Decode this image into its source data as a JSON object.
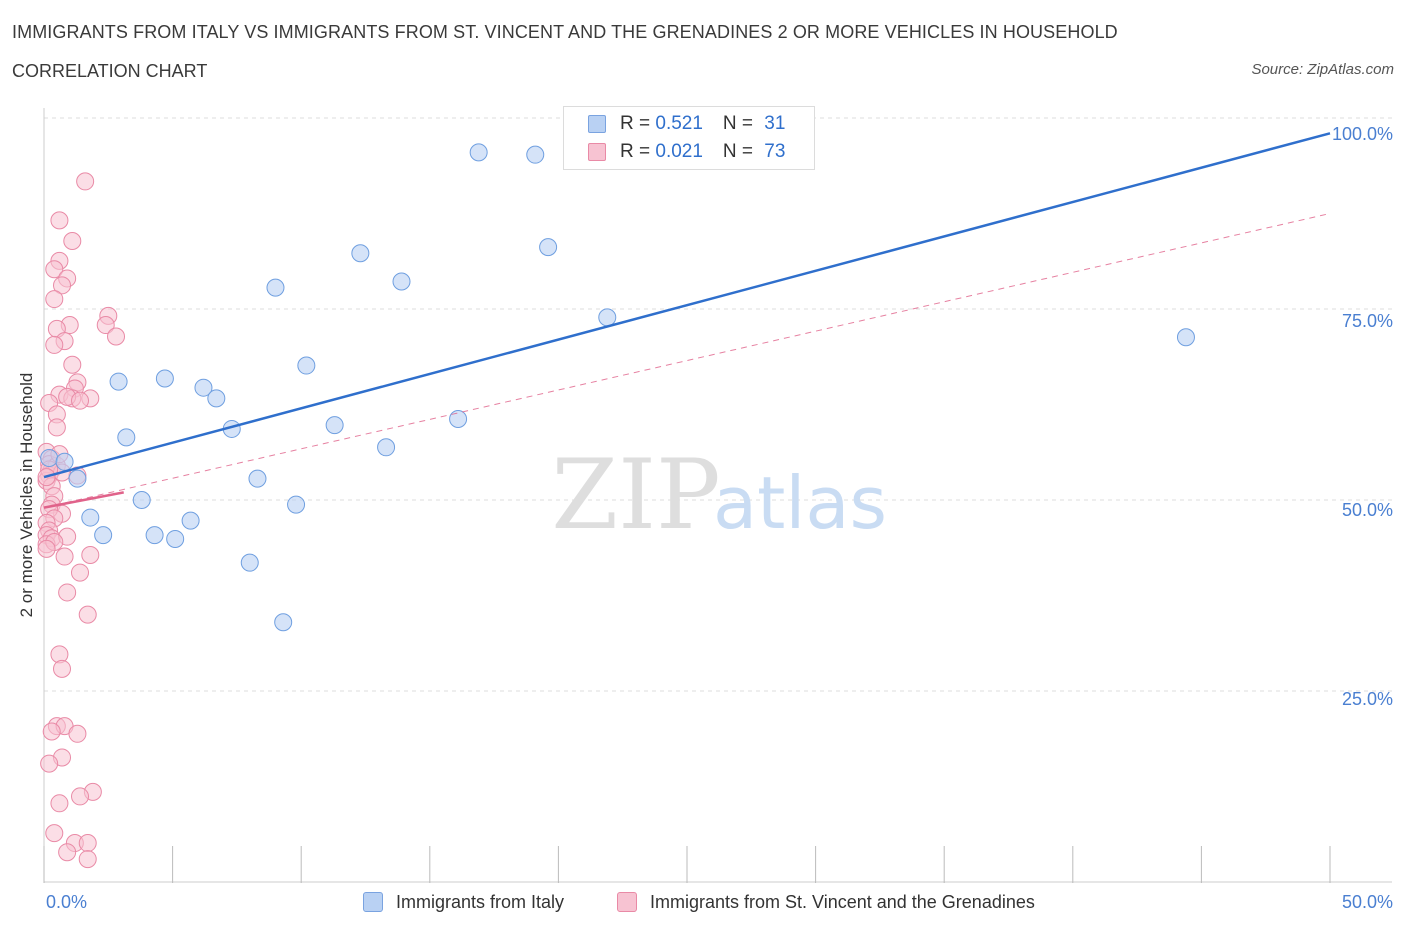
{
  "header": {
    "title": "IMMIGRANTS FROM ITALY VS IMMIGRANTS FROM ST. VINCENT AND THE GRENADINES 2 OR MORE VEHICLES IN HOUSEHOLD",
    "subtitle": "CORRELATION CHART",
    "source": "Source: ZipAtlas.com"
  },
  "watermark": {
    "zip": "ZIP",
    "atlas": "atlas"
  },
  "legend": {
    "rows": [
      {
        "r_label": "R = ",
        "r_value": "0.521",
        "n_label": "N = ",
        "n_value": "31",
        "color": "#a8c6f0"
      },
      {
        "r_label": "R = ",
        "r_value": "0.021",
        "n_label": "N = ",
        "n_value": "73",
        "color": "#f4b6c8"
      }
    ]
  },
  "colors": {
    "italy_fill": "#b9d1f3",
    "italy_stroke": "#6f9fe0",
    "italy_line": "#2f6fcc",
    "svg_fill": "#f7c3d2",
    "svg_stroke": "#e98aa6",
    "svg_line": "#e0628a",
    "tick_text": "#4a7fd1",
    "grid": "#dcdcdc"
  },
  "chart_data": {
    "type": "scatter",
    "title": "IMMIGRANTS FROM ITALY VS IMMIGRANTS FROM ST. VINCENT AND THE GRENADINES 2 OR MORE VEHICLES IN HOUSEHOLD",
    "xlabel": "",
    "ylabel": "2 or more Vehicles in Household",
    "xlim": [
      0,
      50
    ],
    "ylim": [
      0,
      100
    ],
    "x_tick_labels": [
      {
        "value": 0,
        "label": "0.0%"
      },
      {
        "value": 50,
        "label": "50.0%"
      }
    ],
    "y_tick_labels": [
      {
        "value": 100,
        "label": "100.0%"
      },
      {
        "value": 75,
        "label": "75.0%"
      },
      {
        "value": 50,
        "label": "50.0%"
      },
      {
        "value": 25,
        "label": "25.0%"
      }
    ],
    "x_minor_ticks": [
      0,
      5,
      10,
      15,
      20,
      25,
      30,
      35,
      40,
      45,
      50
    ],
    "series": [
      {
        "name": "Immigrants from Italy",
        "R": 0.521,
        "N": 31,
        "trend": {
          "x": [
            0,
            50
          ],
          "y": [
            53.0,
            98.0
          ],
          "style": "solid"
        },
        "points": [
          [
            0.2,
            55.5
          ],
          [
            0.8,
            55.0
          ],
          [
            1.3,
            52.8
          ],
          [
            1.8,
            47.7
          ],
          [
            2.3,
            45.4
          ],
          [
            2.9,
            65.5
          ],
          [
            3.2,
            58.2
          ],
          [
            3.8,
            50.0
          ],
          [
            4.3,
            45.4
          ],
          [
            4.7,
            65.9
          ],
          [
            5.1,
            44.9
          ],
          [
            5.7,
            47.3
          ],
          [
            6.2,
            64.7
          ],
          [
            6.7,
            63.3
          ],
          [
            7.3,
            59.3
          ],
          [
            8.0,
            41.8
          ],
          [
            8.3,
            52.8
          ],
          [
            9.0,
            77.8
          ],
          [
            9.3,
            34.0
          ],
          [
            9.8,
            49.4
          ],
          [
            10.2,
            67.6
          ],
          [
            11.3,
            59.8
          ],
          [
            12.3,
            82.3
          ],
          [
            13.3,
            56.9
          ],
          [
            13.9,
            78.6
          ],
          [
            16.1,
            60.6
          ],
          [
            16.9,
            95.5
          ],
          [
            19.1,
            95.2
          ],
          [
            19.6,
            83.1
          ],
          [
            21.9,
            73.9
          ],
          [
            44.4,
            71.3
          ]
        ]
      },
      {
        "name": "Immigrants from St. Vincent and the Grenadines",
        "R": 0.021,
        "N": 73,
        "trend_solid": {
          "x": [
            0,
            3.1
          ],
          "y": [
            49.0,
            51.0
          ],
          "style": "solid"
        },
        "trend_dashed": {
          "x": [
            0,
            50
          ],
          "y": [
            49.0,
            87.5
          ],
          "style": "dashed"
        },
        "points": [
          [
            1.6,
            91.7
          ],
          [
            0.6,
            86.6
          ],
          [
            1.1,
            83.9
          ],
          [
            0.6,
            81.3
          ],
          [
            0.4,
            80.2
          ],
          [
            0.9,
            79.0
          ],
          [
            0.7,
            78.1
          ],
          [
            0.4,
            76.3
          ],
          [
            2.5,
            74.1
          ],
          [
            2.4,
            72.9
          ],
          [
            1.0,
            72.9
          ],
          [
            0.5,
            72.4
          ],
          [
            2.8,
            71.4
          ],
          [
            0.8,
            70.8
          ],
          [
            0.4,
            70.3
          ],
          [
            1.1,
            67.7
          ],
          [
            1.3,
            65.4
          ],
          [
            1.2,
            64.6
          ],
          [
            0.6,
            63.8
          ],
          [
            1.1,
            63.3
          ],
          [
            1.8,
            63.3
          ],
          [
            0.2,
            62.7
          ],
          [
            0.9,
            63.5
          ],
          [
            1.4,
            63.0
          ],
          [
            0.5,
            61.2
          ],
          [
            0.5,
            59.5
          ],
          [
            0.1,
            56.3
          ],
          [
            0.3,
            55.4
          ],
          [
            0.2,
            54.7
          ],
          [
            0.3,
            53.9
          ],
          [
            0.2,
            53.2
          ],
          [
            0.1,
            52.5
          ],
          [
            0.3,
            51.8
          ],
          [
            0.5,
            54.5
          ],
          [
            1.3,
            53.2
          ],
          [
            0.7,
            53.6
          ],
          [
            0.4,
            50.5
          ],
          [
            0.3,
            49.4
          ],
          [
            0.7,
            48.2
          ],
          [
            0.2,
            48.8
          ],
          [
            0.4,
            47.6
          ],
          [
            0.1,
            47.0
          ],
          [
            0.2,
            46.0
          ],
          [
            0.1,
            45.4
          ],
          [
            0.3,
            45.0
          ],
          [
            0.9,
            45.2
          ],
          [
            0.1,
            44.2
          ],
          [
            0.4,
            44.5
          ],
          [
            0.1,
            43.6
          ],
          [
            1.8,
            42.8
          ],
          [
            0.8,
            42.6
          ],
          [
            1.4,
            40.5
          ],
          [
            0.9,
            37.9
          ],
          [
            1.7,
            35.0
          ],
          [
            0.6,
            29.8
          ],
          [
            0.7,
            27.9
          ],
          [
            0.5,
            20.4
          ],
          [
            0.8,
            20.4
          ],
          [
            0.3,
            19.7
          ],
          [
            1.3,
            19.4
          ],
          [
            0.7,
            16.3
          ],
          [
            0.2,
            15.5
          ],
          [
            1.9,
            11.8
          ],
          [
            1.4,
            11.2
          ],
          [
            0.6,
            10.3
          ],
          [
            0.4,
            6.4
          ],
          [
            1.2,
            5.1
          ],
          [
            1.7,
            5.1
          ],
          [
            0.9,
            3.9
          ],
          [
            1.7,
            3.0
          ],
          [
            0.2,
            54.0
          ],
          [
            0.6,
            56.0
          ],
          [
            0.1,
            53.0
          ]
        ]
      }
    ],
    "legend_position": "top-center",
    "grid": true
  },
  "bottom_legend": [
    {
      "label": "Immigrants from Italy"
    },
    {
      "label": "Immigrants from St. Vincent and the Grenadines"
    }
  ]
}
